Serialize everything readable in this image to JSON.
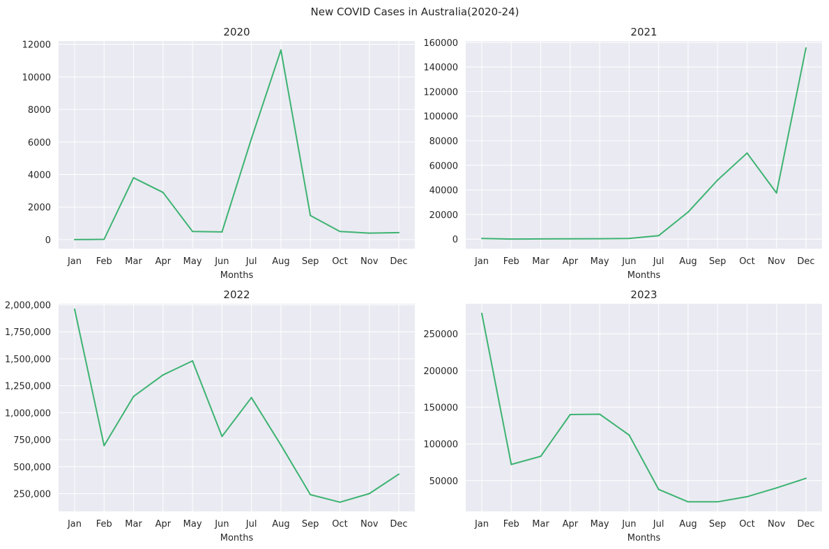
{
  "figure": {
    "suptitle": "New COVID Cases in Australia(2020-24)"
  },
  "style": {
    "line_color": "#3cb371",
    "panel_bg": "#eaeaf2",
    "grid_color": "#ffffff"
  },
  "chart_data": [
    {
      "type": "line",
      "title": "2020",
      "xlabel": "Months",
      "ylabel": "",
      "categories": [
        "Jan",
        "Feb",
        "Mar",
        "Apr",
        "May",
        "Jun",
        "Jul",
        "Aug",
        "Sep",
        "Oct",
        "Nov",
        "Dec"
      ],
      "values": [
        0,
        20,
        3800,
        2900,
        500,
        470,
        6200,
        11650,
        1480,
        500,
        400,
        430
      ],
      "ylim": [
        -560,
        12200
      ],
      "yticks": [
        0,
        2000,
        4000,
        6000,
        8000,
        10000,
        12000
      ],
      "ytick_labels": [
        "0",
        "2000",
        "4000",
        "6000",
        "8000",
        "10000",
        "12000"
      ],
      "grid": true
    },
    {
      "type": "line",
      "title": "2021",
      "xlabel": "Months",
      "ylabel": "",
      "categories": [
        "Jan",
        "Feb",
        "Mar",
        "Apr",
        "May",
        "Jun",
        "Jul",
        "Aug",
        "Sep",
        "Oct",
        "Nov",
        "Dec"
      ],
      "values": [
        500,
        100,
        200,
        300,
        350,
        600,
        2800,
        22000,
        48000,
        70000,
        37500,
        155500
      ],
      "ylim": [
        -7800,
        161000
      ],
      "yticks": [
        0,
        20000,
        40000,
        60000,
        80000,
        100000,
        120000,
        140000,
        160000
      ],
      "ytick_labels": [
        "0",
        "20000",
        "40000",
        "60000",
        "80000",
        "100000",
        "120000",
        "140000",
        "160000"
      ],
      "grid": true
    },
    {
      "type": "line",
      "title": "2022",
      "xlabel": "Months",
      "ylabel": "",
      "categories": [
        "Jan",
        "Feb",
        "Mar",
        "Apr",
        "May",
        "Jun",
        "Jul",
        "Aug",
        "Sep",
        "Oct",
        "Nov",
        "Dec"
      ],
      "values": [
        1960000,
        695000,
        1150000,
        1350000,
        1480000,
        780000,
        1140000,
        700000,
        240000,
        170000,
        250000,
        430000
      ],
      "ylim": [
        85000,
        2010000
      ],
      "yticks": [
        250000,
        500000,
        750000,
        1000000,
        1250000,
        1500000,
        1750000,
        2000000
      ],
      "ytick_labels": [
        "250,000",
        "500,000",
        "750,000",
        "1,000,000",
        "1,250,000",
        "1,500,000",
        "1,750,000",
        "2,000,000"
      ],
      "grid": true
    },
    {
      "type": "line",
      "title": "2023",
      "xlabel": "Months",
      "ylabel": "",
      "categories": [
        "Jan",
        "Feb",
        "Mar",
        "Apr",
        "May",
        "Jun",
        "Jul",
        "Aug",
        "Sep",
        "Oct",
        "Nov",
        "Dec"
      ],
      "values": [
        278000,
        72000,
        83000,
        140000,
        140500,
        112000,
        38000,
        21000,
        21000,
        28000,
        40000,
        53000
      ],
      "ylim": [
        8000,
        291000
      ],
      "yticks": [
        50000,
        100000,
        150000,
        200000,
        250000
      ],
      "ytick_labels": [
        "50000",
        "100000",
        "150000",
        "200000",
        "250000"
      ],
      "grid": true
    }
  ]
}
